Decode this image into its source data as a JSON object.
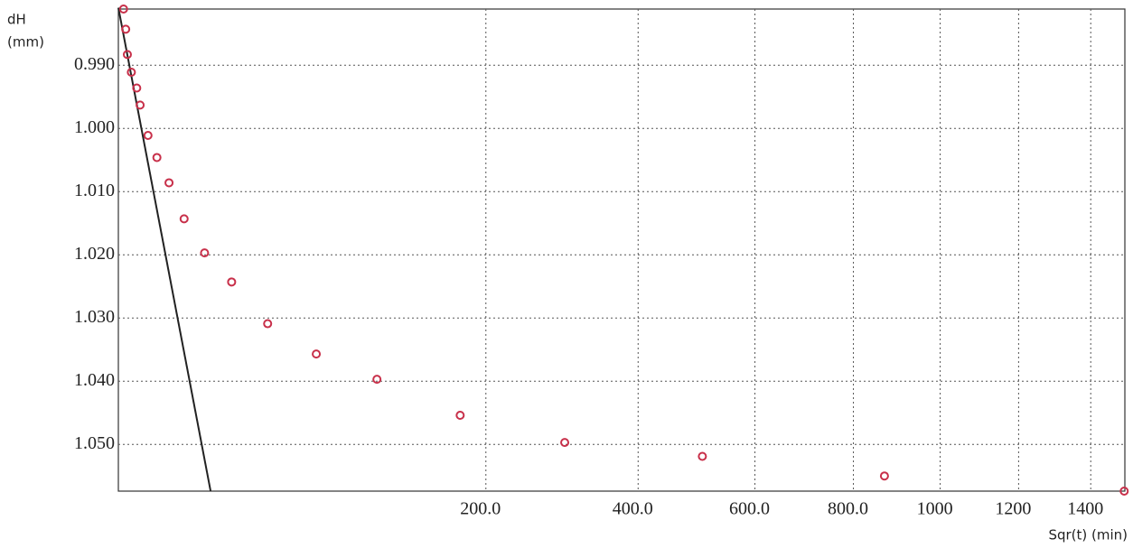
{
  "chart_data": {
    "type": "scatter",
    "y_label": [
      "dH",
      "(mm)"
    ],
    "x_label": "Sqr(t) (min)",
    "xscale": "sqrt",
    "yinvert": true,
    "grid": true,
    "color": "#c8304a",
    "xlim": [
      0,
      1500
    ],
    "ylim": [
      0.9811,
      1.0574
    ],
    "xticks": [
      {
        "value": 200,
        "label": "200.0"
      },
      {
        "value": 400,
        "label": "400.0"
      },
      {
        "value": 600,
        "label": "600.0"
      },
      {
        "value": 800,
        "label": "800.0"
      },
      1000,
      1200,
      1400
    ],
    "yticks": [
      {
        "value": 0.99,
        "label": "0.990"
      },
      {
        "value": 1.0,
        "label": "1.000"
      },
      {
        "value": 1.01,
        "label": "1.010"
      },
      {
        "value": 1.02,
        "label": "1.020"
      },
      {
        "value": 1.03,
        "label": "1.030"
      },
      {
        "value": 1.04,
        "label": "1.040"
      },
      {
        "value": 1.05,
        "label": "1.050"
      }
    ],
    "x": [
      0.04,
      0.08,
      0.12,
      0.25,
      0.5,
      0.7,
      1.3,
      2.2,
      3.8,
      6.4,
      11,
      19,
      33,
      58,
      99,
      173,
      295,
      505,
      869,
      1498
    ],
    "values": [
      0.9811,
      0.9843,
      0.9883,
      0.9911,
      0.9936,
      0.9963,
      1.0011,
      1.0046,
      1.0086,
      1.0143,
      1.0197,
      1.0243,
      1.0309,
      1.0357,
      1.0397,
      1.0454,
      1.0497,
      1.0519,
      1.055,
      1.0574
    ],
    "fit_line": {
      "x": [
        0,
        12.6
      ],
      "y": [
        0.9809,
        1.0574
      ],
      "color": "#222"
    }
  }
}
